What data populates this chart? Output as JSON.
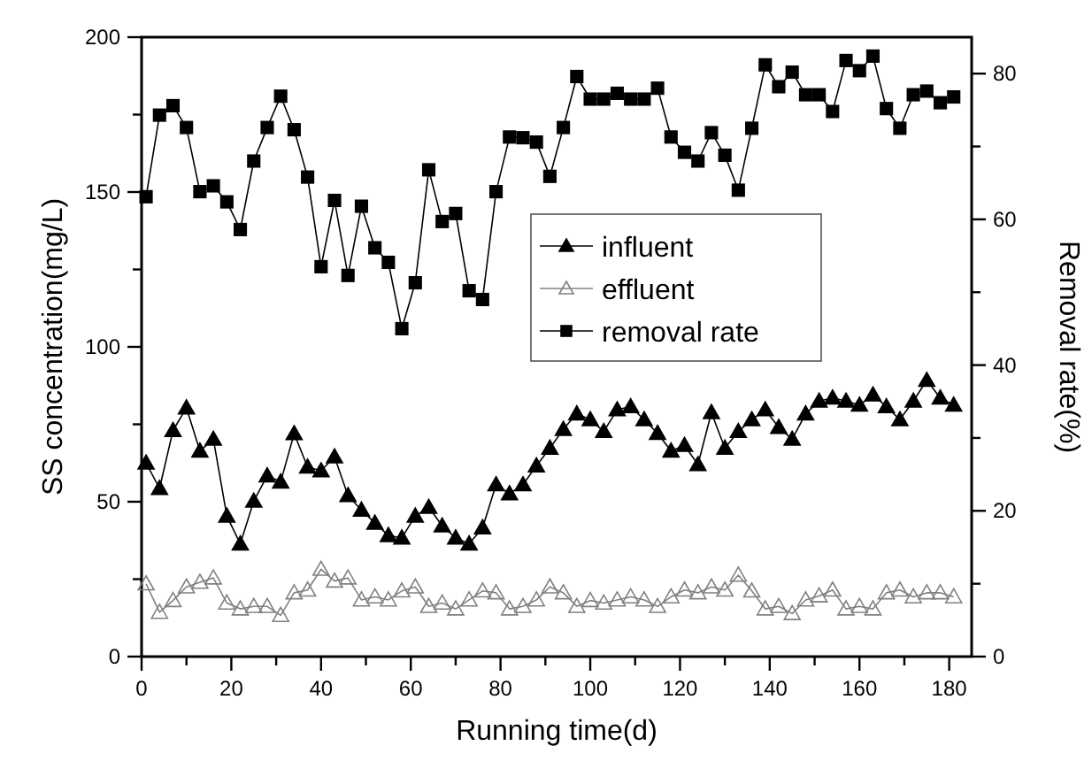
{
  "chart_data": {
    "type": "line",
    "xlabel": "Running time(d)",
    "ylabel": "SS concentration(mg/L)",
    "y2label": "Removal rate(%)",
    "x": [
      1,
      4,
      7,
      10,
      13,
      16,
      19,
      22,
      25,
      28,
      31,
      34,
      37,
      40,
      43,
      46,
      49,
      52,
      55,
      58,
      61,
      64,
      67,
      70,
      73,
      76,
      79,
      82,
      85,
      88,
      91,
      94,
      97,
      100,
      103,
      106,
      109,
      112,
      115,
      118,
      121,
      124,
      127,
      130,
      133,
      136,
      139,
      142,
      145,
      148,
      151,
      154,
      157,
      160,
      163,
      166,
      169,
      172,
      175,
      178,
      181
    ],
    "xlim": [
      0,
      185
    ],
    "xticks": [
      0,
      {
        "value": 10,
        "label": null
      },
      20,
      {
        "value": 30,
        "label": null
      },
      40,
      {
        "value": 50,
        "label": null
      },
      60,
      {
        "value": 70,
        "label": null
      },
      80,
      {
        "value": 90,
        "label": null
      },
      100,
      {
        "value": 110,
        "label": null
      },
      120,
      {
        "value": 130,
        "label": null
      },
      140,
      {
        "value": 150,
        "label": null
      },
      160,
      {
        "value": 170,
        "label": null
      },
      180
    ],
    "ylim": [
      0,
      200
    ],
    "yticks": [
      0,
      {
        "value": 25,
        "label": null
      },
      50,
      {
        "value": 75,
        "label": null
      },
      100,
      {
        "value": 125,
        "label": null
      },
      150,
      {
        "value": 175,
        "label": null
      },
      200
    ],
    "y2lim": [
      0,
      85
    ],
    "y2ticks": [
      0,
      {
        "value": 10,
        "label": null
      },
      20,
      {
        "value": 30,
        "label": null
      },
      40,
      {
        "value": 50,
        "label": null
      },
      60,
      {
        "value": 70,
        "label": null
      },
      80
    ],
    "grid": false,
    "legend": "center",
    "line_style": "solid",
    "series": [
      {
        "name": "influent",
        "color": "#000000",
        "marker": "triangle",
        "values": [
          62.5,
          54.3,
          73,
          80.3,
          66.4,
          70.2,
          45.4,
          36.4,
          50.2,
          58.4,
          56.4,
          72,
          61.2,
          60,
          64.5,
          52,
          47.3,
          43.1,
          39.1,
          38.3,
          45.4,
          48.2,
          42.2,
          38.3,
          36.4,
          41.6,
          55.5,
          52.6,
          55.5,
          61.6,
          67.3,
          73.4,
          78.4,
          76.5,
          72.7,
          79.7,
          80.7,
          76.5,
          72.1,
          66.4,
          68.2,
          62,
          78.8,
          67.3,
          72.7,
          76.5,
          79.7,
          74,
          70.2,
          78.4,
          82.5,
          83.5,
          82.5,
          81.2,
          84.5,
          80.7,
          76.5,
          82.5,
          89.2,
          83.5,
          81.2
        ]
      },
      {
        "name": "effluent",
        "color": "#808080",
        "marker": "triangle",
        "values": [
          23.5,
          14.3,
          18.1,
          22.5,
          24,
          25.4,
          17.3,
          15.4,
          16.2,
          16.2,
          13.3,
          20.6,
          21.5,
          28.2,
          24.4,
          25.4,
          18.3,
          19.3,
          18.3,
          21.2,
          22.5,
          16.2,
          17.3,
          15.4,
          18.3,
          21.2,
          20.6,
          15.4,
          16.2,
          18.3,
          22.5,
          20.6,
          16.2,
          18.1,
          17.3,
          18.3,
          19.3,
          18.3,
          16.2,
          19.3,
          21.5,
          20.6,
          22.5,
          21.5,
          26.3,
          21.2,
          15.4,
          16.2,
          13.9,
          18.3,
          19.6,
          21.5,
          15.4,
          16.2,
          15.4,
          20.6,
          21.5,
          19.3,
          20.6,
          20.6,
          19.3
        ]
      },
      {
        "name": "removal rate",
        "color": "#000000",
        "marker": "square",
        "axis": "y2",
        "values": [
          63.1,
          74.3,
          75.6,
          72.6,
          63.8,
          64.6,
          62.4,
          58.6,
          68,
          72.6,
          76.9,
          72.3,
          65.8,
          53.5,
          62.6,
          52.3,
          61.8,
          56.1,
          54.1,
          45,
          51.3,
          66.8,
          59.7,
          60.8,
          50.2,
          49,
          63.8,
          71.3,
          71.2,
          70.6,
          65.9,
          72.6,
          79.6,
          76.5,
          76.5,
          77.3,
          76.5,
          76.5,
          78,
          71.3,
          69.2,
          68,
          71.9,
          68.8,
          64,
          72.5,
          81.2,
          78.2,
          80.2,
          77.1,
          77.1,
          74.8,
          81.8,
          80.4,
          82.4,
          75.2,
          72.5,
          77.1,
          77.6,
          76,
          76.8
        ]
      }
    ]
  }
}
